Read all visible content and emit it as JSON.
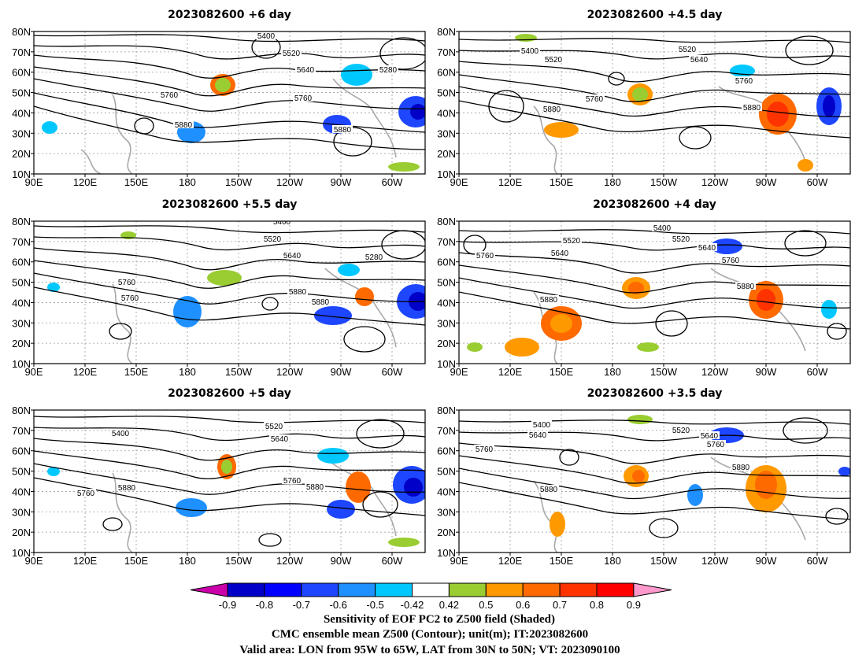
{
  "panels": [
    {
      "title": "2023082600  +6 day",
      "contour_labels": [
        "5400",
        "5520",
        "5640",
        "5280",
        "5760",
        "5760",
        "5880",
        "5880"
      ]
    },
    {
      "title": "2023082600  +4.5  day",
      "contour_labels": [
        "5400",
        "5520",
        "5520",
        "5640",
        "5760",
        "5760",
        "5880",
        "5880"
      ]
    },
    {
      "title": "2023082600  +5.5  day",
      "contour_labels": [
        "5400",
        "5520",
        "5640",
        "5280",
        "5760",
        "5880",
        "5760",
        "5880"
      ]
    },
    {
      "title": "2023082600  +4  day",
      "contour_labels": [
        "5400",
        "5520",
        "5520",
        "5640",
        "5640",
        "5760",
        "5760",
        "5880",
        "5880"
      ]
    },
    {
      "title": "2023082600  +5  day",
      "contour_labels": [
        "5400",
        "5520",
        "5640",
        "5760",
        "5760",
        "5880",
        "5880"
      ]
    },
    {
      "title": "2023082600  +3.5  day",
      "contour_labels": [
        "5400",
        "5520",
        "5640",
        "5640",
        "5760",
        "5760",
        "5880",
        "5880"
      ]
    }
  ],
  "axes": {
    "lat_labels": [
      "80N",
      "70N",
      "60N",
      "50N",
      "40N",
      "30N",
      "20N",
      "10N"
    ],
    "lon_labels": [
      "90E",
      "120E",
      "150E",
      "180",
      "150W",
      "120W",
      "90W",
      "60W"
    ]
  },
  "colorbar": {
    "ticks": [
      "-0.9",
      "-0.8",
      "-0.7",
      "-0.6",
      "-0.5",
      "-0.42",
      "0.42",
      "0.5",
      "0.6",
      "0.7",
      "0.8",
      "0.9"
    ],
    "colors": [
      "#0000c8",
      "#0000ff",
      "#1e46ff",
      "#1e90ff",
      "#00c8ff",
      "#ffffff",
      "#9acd32",
      "#ff9900",
      "#ff6a00",
      "#ff3300",
      "#ff0000"
    ],
    "left_arrow_color": "#cc00aa",
    "right_arrow_color": "#ff99cc"
  },
  "caption": {
    "line1": "Sensitivity of EOF PC2 to Z500 field (Shaded)",
    "line2": "CMC ensemble mean Z500 (Contour); unit(m); IT:2023082600",
    "line3": "Valid area: LON from 95W to 65W, LAT from 30N to 50N; VT: 2023090100"
  }
}
